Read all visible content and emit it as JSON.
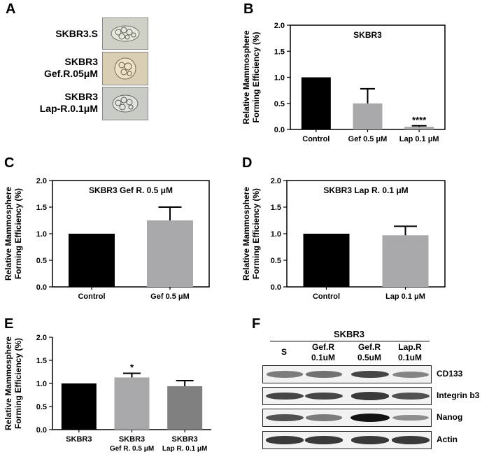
{
  "panels": {
    "a": "A",
    "b": "B",
    "c": "C",
    "d": "D",
    "e": "E",
    "f": "F"
  },
  "micro_labels": [
    [
      "SKBR3.S"
    ],
    [
      "SKBR3",
      "Gef.R.05μM"
    ],
    [
      "SKBR3",
      "Lap-R.0.1μM"
    ]
  ],
  "blot": {
    "header": "SKBR3",
    "lanes": [
      [
        "S",
        ""
      ],
      [
        "Gef.R",
        "0.1uM"
      ],
      [
        "Gef.R",
        "0.5uM"
      ],
      [
        "Lap.R",
        "0.1uM"
      ]
    ],
    "rows": [
      {
        "label": "CD133",
        "intensity": [
          0.55,
          0.6,
          0.8,
          0.5
        ]
      },
      {
        "label": "Integrin b3",
        "intensity": [
          0.8,
          0.8,
          0.85,
          0.75
        ]
      },
      {
        "label": "Nanog",
        "intensity": [
          0.75,
          0.55,
          1.0,
          0.45
        ]
      },
      {
        "label": "Actin",
        "intensity": [
          0.85,
          0.85,
          0.85,
          0.85
        ]
      }
    ]
  },
  "colors": {
    "black": "#000000",
    "light_gray": "#a9a9ab",
    "mid_gray": "#808080"
  },
  "chart_data": [
    {
      "panel": "B",
      "type": "bar",
      "title": "SKBR3",
      "ylabel": "Relative Mammosphere Forming Efficiency (%)",
      "categories": [
        "Control",
        "Gef 0.5 μM",
        "Lap 0.1 μM"
      ],
      "values": [
        1.0,
        0.5,
        0.05
      ],
      "errors": [
        0,
        0.28,
        0.02
      ],
      "colors": [
        "#000000",
        "#a9a9ab",
        "#a9a9ab"
      ],
      "annotations": [
        "",
        "",
        "****"
      ],
      "ylim": [
        0,
        2.0
      ],
      "yticks": [
        "0.0",
        "0.5",
        "1.0",
        "1.5",
        "2.0"
      ],
      "boxed": true
    },
    {
      "panel": "C",
      "type": "bar",
      "title": "SKBR3 Gef R. 0.5 μM",
      "ylabel": "Relative Mammosphere Forming Efficiency (%)",
      "categories": [
        "Control",
        "Gef 0.5 μM"
      ],
      "values": [
        1.0,
        1.25
      ],
      "errors": [
        0,
        0.25
      ],
      "colors": [
        "#000000",
        "#a9a9ab"
      ],
      "annotations": [
        "",
        ""
      ],
      "ylim": [
        0,
        2.0
      ],
      "yticks": [
        "0.0",
        "0.5",
        "1.0",
        "1.5",
        "2.0"
      ],
      "boxed": true
    },
    {
      "panel": "D",
      "type": "bar",
      "title": "SKBR3 Lap R. 0.1 μM",
      "ylabel": "Relative Mammosphere Forming Efficiency (%)",
      "categories": [
        "Control",
        "Lap 0.1 μM"
      ],
      "values": [
        1.0,
        0.97
      ],
      "errors": [
        0,
        0.17
      ],
      "colors": [
        "#000000",
        "#a9a9ab"
      ],
      "annotations": [
        "",
        ""
      ],
      "ylim": [
        0,
        2.0
      ],
      "yticks": [
        "0.0",
        "0.5",
        "1.0",
        "1.5",
        "2.0"
      ],
      "boxed": true
    },
    {
      "panel": "E",
      "type": "bar",
      "title": "",
      "ylabel": "Relative Mammosphere Forming Efficiency (%)",
      "categories": [
        [
          "SKBR3"
        ],
        [
          "SKBR3",
          "Gef R. 0.5 μM"
        ],
        [
          "SKBR3",
          "Lap R. 0.1 μM"
        ]
      ],
      "values": [
        1.0,
        1.13,
        0.94
      ],
      "errors": [
        0,
        0.09,
        0.12
      ],
      "colors": [
        "#000000",
        "#a9a9ab",
        "#808080"
      ],
      "annotations": [
        "",
        "*",
        ""
      ],
      "ylim": [
        0,
        2.0
      ],
      "yticks": [
        "0.0",
        "0.5",
        "1.0",
        "1.5",
        "2.0"
      ],
      "boxed": false
    }
  ]
}
